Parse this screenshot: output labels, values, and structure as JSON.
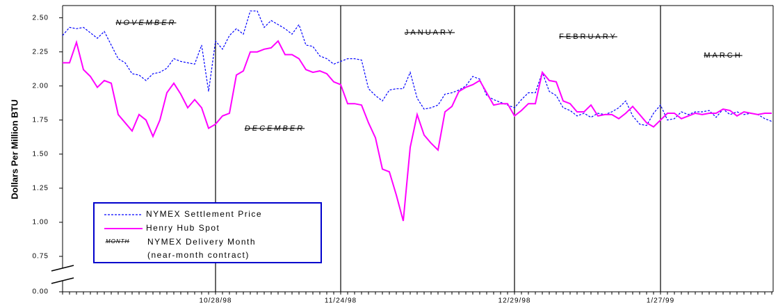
{
  "chart_data": {
    "type": "line",
    "y_label": "Dollars Per Million BTU",
    "categories": [
      null,
      null,
      null,
      null,
      null,
      null,
      null,
      null,
      null,
      null,
      null,
      null,
      null,
      null,
      null,
      null,
      null,
      null,
      null,
      null,
      null,
      null,
      "10/28/98",
      null,
      null,
      null,
      null,
      null,
      null,
      null,
      null,
      null,
      null,
      null,
      null,
      null,
      null,
      null,
      null,
      null,
      "11/24/98",
      null,
      null,
      null,
      null,
      null,
      null,
      null,
      null,
      null,
      null,
      null,
      null,
      null,
      null,
      null,
      null,
      null,
      null,
      null,
      null,
      null,
      null,
      null,
      null,
      "12/29/98",
      null,
      null,
      null,
      null,
      null,
      null,
      null,
      null,
      null,
      null,
      null,
      null,
      null,
      null,
      null,
      null,
      null,
      null,
      null,
      null,
      "1/27/99",
      null,
      null,
      null,
      null,
      null,
      null,
      null,
      null,
      null,
      null,
      null,
      null,
      null,
      null,
      null,
      null
    ],
    "series": [
      {
        "name": "NYMEX Settlement Price",
        "color": "#0000ff",
        "dashed": true,
        "values": [
          2.37,
          2.43,
          2.42,
          2.43,
          2.39,
          2.35,
          2.4,
          2.3,
          2.2,
          2.17,
          2.09,
          2.08,
          2.04,
          2.09,
          2.1,
          2.13,
          2.2,
          2.18,
          2.17,
          2.16,
          2.3,
          1.96,
          2.33,
          2.27,
          2.37,
          2.42,
          2.38,
          2.55,
          2.55,
          2.43,
          2.48,
          2.45,
          2.42,
          2.38,
          2.45,
          2.3,
          2.29,
          2.22,
          2.2,
          2.16,
          2.18,
          2.2,
          2.2,
          2.19,
          1.98,
          1.93,
          1.89,
          1.97,
          1.98,
          1.98,
          2.1,
          1.91,
          1.83,
          1.84,
          1.86,
          1.94,
          1.95,
          1.97,
          2.0,
          2.07,
          2.05,
          1.93,
          1.9,
          1.88,
          1.86,
          1.84,
          1.9,
          1.95,
          1.95,
          2.1,
          1.96,
          1.93,
          1.84,
          1.82,
          1.78,
          1.8,
          1.77,
          1.8,
          1.79,
          1.81,
          1.84,
          1.89,
          1.78,
          1.72,
          1.71,
          1.8,
          1.86,
          1.75,
          1.76,
          1.81,
          1.79,
          1.81,
          1.81,
          1.82,
          1.77,
          1.83,
          1.79,
          1.81,
          1.79,
          1.8,
          1.79,
          1.76,
          1.74
        ]
      },
      {
        "name": "Henry Hub Spot",
        "color": "#ff00ff",
        "dashed": false,
        "values": [
          2.17,
          2.17,
          2.32,
          2.12,
          2.07,
          1.99,
          2.04,
          2.02,
          1.79,
          1.73,
          1.67,
          1.79,
          1.75,
          1.63,
          1.75,
          1.95,
          2.02,
          1.94,
          1.84,
          1.9,
          1.84,
          1.69,
          1.72,
          1.78,
          1.8,
          2.08,
          2.11,
          2.25,
          2.25,
          2.27,
          2.28,
          2.33,
          2.23,
          2.23,
          2.2,
          2.12,
          2.1,
          2.11,
          2.09,
          2.03,
          2.01,
          1.87,
          1.87,
          1.86,
          1.73,
          1.62,
          1.39,
          1.37,
          1.2,
          1.01,
          1.55,
          1.79,
          1.64,
          1.58,
          1.53,
          1.81,
          1.85,
          1.96,
          1.99,
          2.01,
          2.04,
          1.95,
          1.86,
          1.87,
          1.87,
          1.78,
          1.82,
          1.87,
          1.87,
          2.1,
          2.04,
          2.03,
          1.89,
          1.87,
          1.81,
          1.81,
          1.86,
          1.78,
          1.79,
          1.79,
          1.76,
          1.8,
          1.85,
          1.79,
          1.73,
          1.7,
          1.75,
          1.8,
          1.8,
          1.76,
          1.78,
          1.8,
          1.79,
          1.8,
          1.8,
          1.83,
          1.82,
          1.78,
          1.81,
          1.8,
          1.79,
          1.8,
          1.8
        ]
      }
    ],
    "ylim": [
      0,
      2.6
    ],
    "axis_break": [
      0,
      0.75
    ],
    "yticks": [
      {
        "value": 0,
        "label": "0.00"
      },
      {
        "value": 0.75,
        "label": "0.75"
      },
      {
        "value": 1,
        "label": "1.00"
      },
      {
        "value": 1.25,
        "label": "1.25"
      },
      {
        "value": 1.5,
        "label": "1.50"
      },
      {
        "value": 1.75,
        "label": "1.75"
      },
      {
        "value": 2,
        "label": "2.00"
      },
      {
        "value": 2.25,
        "label": "2.25"
      },
      {
        "value": 2.5,
        "label": "2.50"
      }
    ],
    "grid": false,
    "month_labels": [
      "NOVEMBER",
      "DECEMBER",
      "JANUARY",
      "FEBRUARY",
      "MARCH"
    ],
    "legend_note": {
      "sample": "MONTH",
      "label": "NYMEX Delivery Month",
      "detail": "(near-month contract)"
    },
    "legend_position": "lower-left"
  }
}
